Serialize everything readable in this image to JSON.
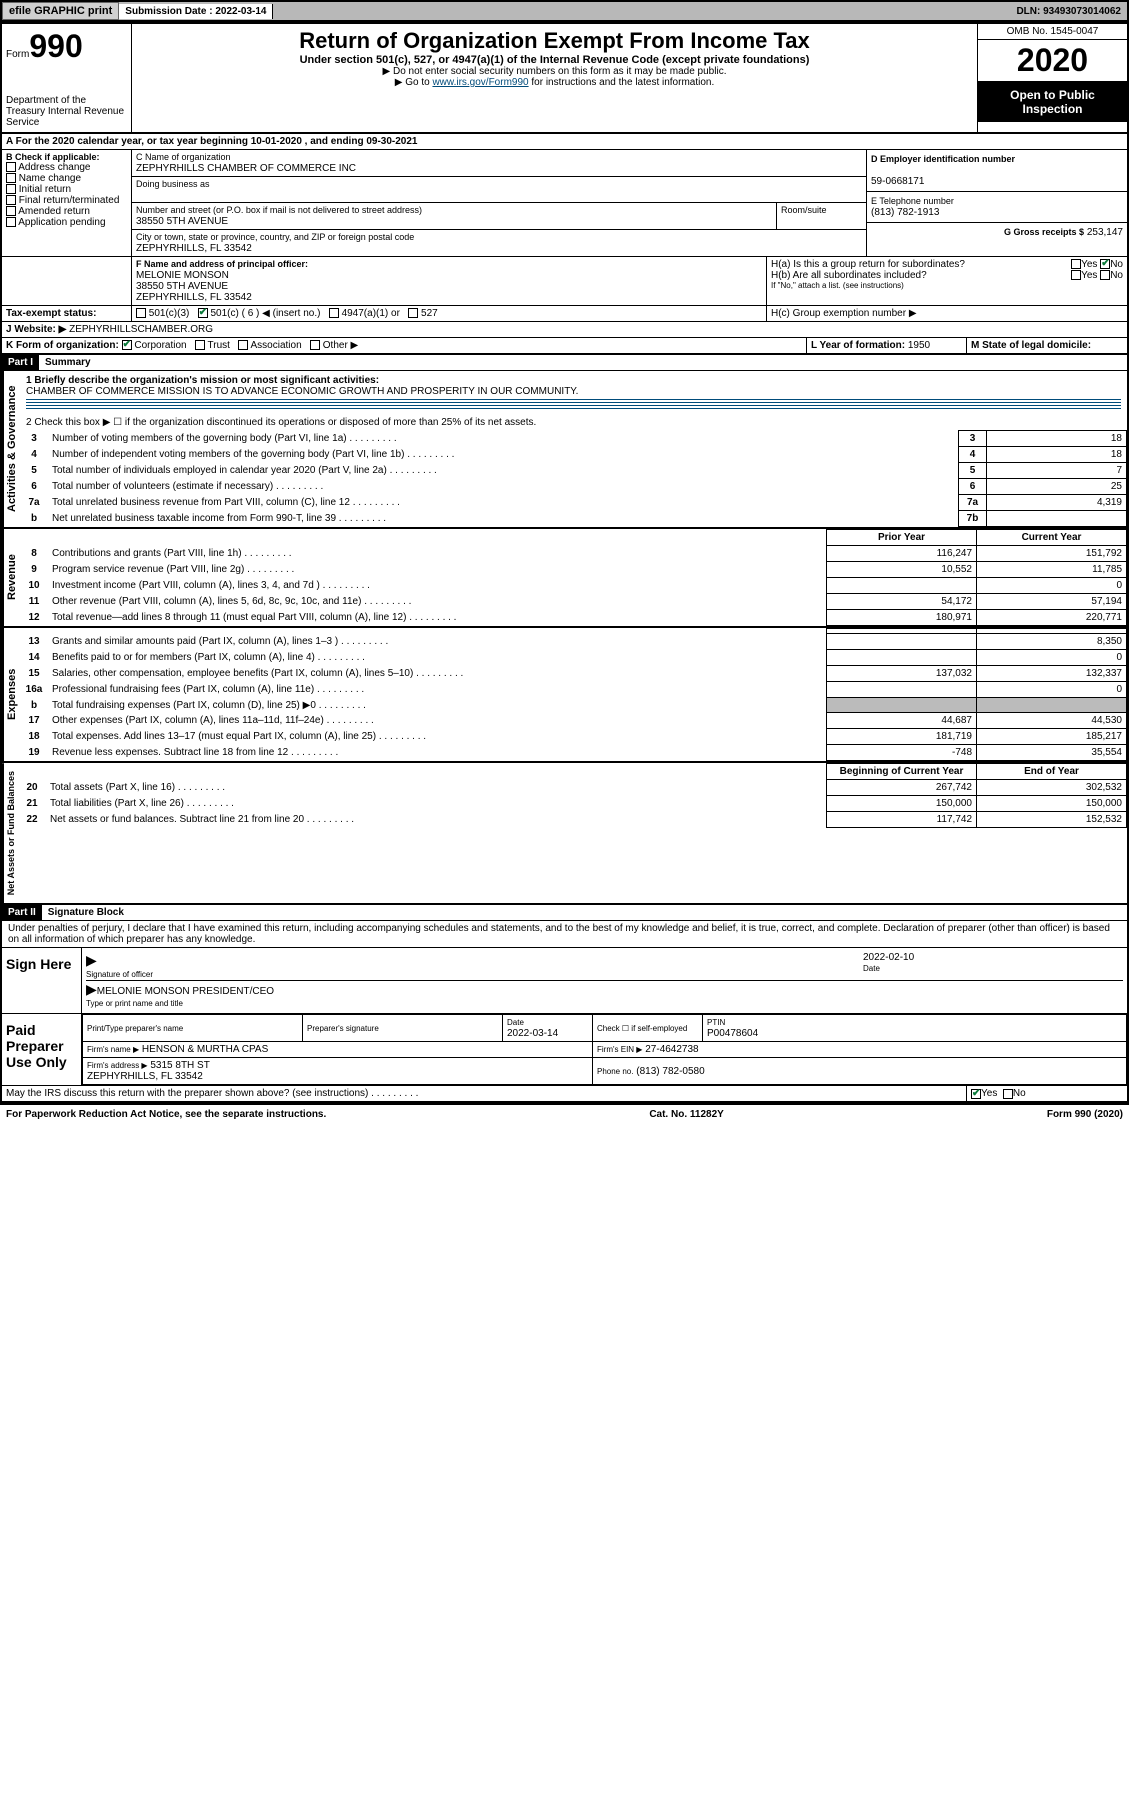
{
  "topbar": {
    "efile": "efile GRAPHIC print",
    "subdate_label": "Submission Date :",
    "subdate": "2022-03-14",
    "dln_label": "DLN:",
    "dln": "93493073014062"
  },
  "header": {
    "form_label": "Form",
    "form_no": "990",
    "dept": "Department of the Treasury\nInternal Revenue Service",
    "title": "Return of Organization Exempt From Income Tax",
    "subtitle": "Under section 501(c), 527, or 4947(a)(1) of the Internal Revenue Code (except private foundations)",
    "note1": "▶ Do not enter social security numbers on this form as it may be made public.",
    "note2a": "▶ Go to ",
    "note2link": "www.irs.gov/Form990",
    "note2b": " for instructions and the latest information.",
    "omb": "OMB No. 1545-0047",
    "year": "2020",
    "inspect": "Open to Public Inspection"
  },
  "period": {
    "line": "For the 2020 calendar year, or tax year beginning 10-01-2020    , and ending 09-30-2021"
  },
  "boxB": {
    "label": "B Check if applicable:",
    "opts": [
      "Address change",
      "Name change",
      "Initial return",
      "Final return/terminated",
      "Amended return",
      "Application pending"
    ]
  },
  "boxC": {
    "name_label": "C Name of organization",
    "name": "ZEPHYRHILLS CHAMBER OF COMMERCE INC",
    "dba_label": "Doing business as",
    "addr_label": "Number and street (or P.O. box if mail is not delivered to street address)",
    "room_label": "Room/suite",
    "addr": "38550 5TH AVENUE",
    "city_label": "City or town, state or province, country, and ZIP or foreign postal code",
    "city": "ZEPHYRHILLS, FL  33542"
  },
  "boxD": {
    "label": "D Employer identification number",
    "val": "59-0668171"
  },
  "boxE": {
    "label": "E Telephone number",
    "val": "(813) 782-1913"
  },
  "boxG": {
    "label": "G Gross receipts $",
    "val": "253,147"
  },
  "boxF": {
    "label": "F Name and address of principal officer:",
    "name": "MELONIE MONSON",
    "addr": "38550 5TH AVENUE",
    "city": "ZEPHYRHILLS, FL  33542"
  },
  "boxH": {
    "a": "H(a)  Is this a group return for subordinates?",
    "b": "H(b)  Are all subordinates included?",
    "bnote": "If \"No,\" attach a list. (see instructions)",
    "c": "H(c)  Group exemption number ▶"
  },
  "boxI": {
    "label": "Tax-exempt status:",
    "o1": "501(c)(3)",
    "o2": "501(c) ( 6 ) ◀ (insert no.)",
    "o3": "4947(a)(1) or",
    "o4": "527"
  },
  "boxJ": {
    "label": "J   Website: ▶",
    "val": "ZEPHYRHILLSCHAMBER.ORG"
  },
  "boxK": {
    "label": "K Form of organization:",
    "opts": [
      "Corporation",
      "Trust",
      "Association",
      "Other ▶"
    ]
  },
  "boxL": {
    "label": "L Year of formation:",
    "val": "1950"
  },
  "boxM": {
    "label": "M State of legal domicile:"
  },
  "partI": {
    "hdr": "Part I",
    "title": "Summary",
    "q1": "1  Briefly describe the organization's mission or most significant activities:",
    "mission": "CHAMBER OF COMMERCE MISSION IS TO ADVANCE ECONOMIC GROWTH AND PROSPERITY IN OUR COMMUNITY.",
    "q2": "2  Check this box ▶ ☐  if the organization discontinued its operations or disposed of more than 25% of its net assets.",
    "gov_rows": [
      {
        "n": "3",
        "d": "Number of voting members of the governing body (Part VI, line 1a)",
        "box": "3",
        "v": "18"
      },
      {
        "n": "4",
        "d": "Number of independent voting members of the governing body (Part VI, line 1b)",
        "box": "4",
        "v": "18"
      },
      {
        "n": "5",
        "d": "Total number of individuals employed in calendar year 2020 (Part V, line 2a)",
        "box": "5",
        "v": "7"
      },
      {
        "n": "6",
        "d": "Total number of volunteers (estimate if necessary)",
        "box": "6",
        "v": "25"
      },
      {
        "n": "7a",
        "d": "Total unrelated business revenue from Part VIII, column (C), line 12",
        "box": "7a",
        "v": "4,319"
      },
      {
        "n": "b",
        "d": "Net unrelated business taxable income from Form 990-T, line 39",
        "box": "7b",
        "v": ""
      }
    ],
    "col_prior": "Prior Year",
    "col_current": "Current Year",
    "rev_rows": [
      {
        "n": "8",
        "d": "Contributions and grants (Part VIII, line 1h)",
        "p": "116,247",
        "c": "151,792"
      },
      {
        "n": "9",
        "d": "Program service revenue (Part VIII, line 2g)",
        "p": "10,552",
        "c": "11,785"
      },
      {
        "n": "10",
        "d": "Investment income (Part VIII, column (A), lines 3, 4, and 7d )",
        "p": "",
        "c": "0"
      },
      {
        "n": "11",
        "d": "Other revenue (Part VIII, column (A), lines 5, 6d, 8c, 9c, 10c, and 11e)",
        "p": "54,172",
        "c": "57,194"
      },
      {
        "n": "12",
        "d": "Total revenue—add lines 8 through 11 (must equal Part VIII, column (A), line 12)",
        "p": "180,971",
        "c": "220,771"
      }
    ],
    "exp_rows": [
      {
        "n": "13",
        "d": "Grants and similar amounts paid (Part IX, column (A), lines 1–3 )",
        "p": "",
        "c": "8,350"
      },
      {
        "n": "14",
        "d": "Benefits paid to or for members (Part IX, column (A), line 4)",
        "p": "",
        "c": "0"
      },
      {
        "n": "15",
        "d": "Salaries, other compensation, employee benefits (Part IX, column (A), lines 5–10)",
        "p": "137,032",
        "c": "132,337"
      },
      {
        "n": "16a",
        "d": "Professional fundraising fees (Part IX, column (A), line 11e)",
        "p": "",
        "c": "0"
      },
      {
        "n": "b",
        "d": "Total fundraising expenses (Part IX, column (D), line 25) ▶0",
        "p": "grey",
        "c": "grey"
      },
      {
        "n": "17",
        "d": "Other expenses (Part IX, column (A), lines 11a–11d, 11f–24e)",
        "p": "44,687",
        "c": "44,530"
      },
      {
        "n": "18",
        "d": "Total expenses. Add lines 13–17 (must equal Part IX, column (A), line 25)",
        "p": "181,719",
        "c": "185,217"
      },
      {
        "n": "19",
        "d": "Revenue less expenses. Subtract line 18 from line 12",
        "p": "-748",
        "c": "35,554"
      }
    ],
    "col_begin": "Beginning of Current Year",
    "col_end": "End of Year",
    "net_rows": [
      {
        "n": "20",
        "d": "Total assets (Part X, line 16)",
        "p": "267,742",
        "c": "302,532"
      },
      {
        "n": "21",
        "d": "Total liabilities (Part X, line 26)",
        "p": "150,000",
        "c": "150,000"
      },
      {
        "n": "22",
        "d": "Net assets or fund balances. Subtract line 21 from line 20",
        "p": "117,742",
        "c": "152,532"
      }
    ]
  },
  "partII": {
    "hdr": "Part II",
    "title": "Signature Block",
    "perjury": "Under penalties of perjury, I declare that I have examined this return, including accompanying schedules and statements, and to the best of my knowledge and belief, it is true, correct, and complete. Declaration of preparer (other than officer) is based on all information of which preparer has any knowledge."
  },
  "sign": {
    "here": "Sign Here",
    "sig_label": "Signature of officer",
    "date_label": "Date",
    "date": "2022-02-10",
    "name": "MELONIE MONSON PRESIDENT/CEO",
    "name_label": "Type or print name and title"
  },
  "paid": {
    "label": "Paid Preparer Use Only",
    "p_name_label": "Print/Type preparer's name",
    "p_sig_label": "Preparer's signature",
    "p_date_label": "Date",
    "p_date": "2022-03-14",
    "check_label": "Check ☐ if self-employed",
    "ptin_label": "PTIN",
    "ptin": "P00478604",
    "firm_label": "Firm's name   ▶",
    "firm": "HENSON & MURTHA CPAS",
    "ein_label": "Firm's EIN ▶",
    "ein": "27-4642738",
    "addr_label": "Firm's address ▶",
    "addr": "5315 8TH ST",
    "city": "ZEPHYRHILLS, FL  33542",
    "phone_label": "Phone no.",
    "phone": "(813) 782-0580"
  },
  "discuss": "May the IRS discuss this return with the preparer shown above? (see instructions)",
  "footer": {
    "pra": "For Paperwork Reduction Act Notice, see the separate instructions.",
    "cat": "Cat. No. 11282Y",
    "form": "Form 990 (2020)"
  },
  "yes": "Yes",
  "no": "No"
}
